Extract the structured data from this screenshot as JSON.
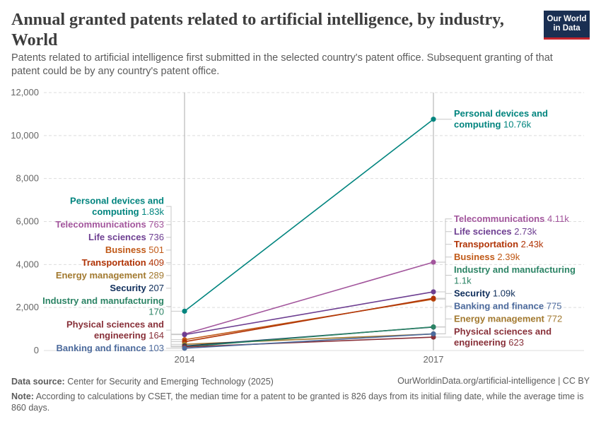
{
  "header": {
    "title": "Annual granted patents related to artificial intelligence, by industry, World",
    "subtitle": "Patents related to artificial intelligence first submitted in the selected country's patent office. Subsequent granting of that patent could be by any country's patent office.",
    "logo_line1": "Our World",
    "logo_line2": "in Data"
  },
  "footer": {
    "source_label": "Data source:",
    "source_text": "Center for Security and Emerging Technology (2025)",
    "url": "OurWorldinData.org/artificial-intelligence | CC BY",
    "note_label": "Note:",
    "note_text": "According to calculations by CSET, the median time for a patent to be granted is 826 days from its initial filing date, while the average time is 860 days."
  },
  "chart_data": {
    "type": "line",
    "subtype": "slope",
    "x": [
      2014,
      2017
    ],
    "x_tick_labels": [
      "2014",
      "2017"
    ],
    "ylim": [
      0,
      12000
    ],
    "y_ticks": [
      0,
      2000,
      4000,
      6000,
      8000,
      10000,
      12000
    ],
    "y_tick_labels": [
      "0",
      "2,000",
      "4,000",
      "6,000",
      "8,000",
      "10,000",
      "12,000"
    ],
    "grid": true,
    "series": [
      {
        "name": "Personal devices and computing",
        "color": "#00847e",
        "values": [
          1830,
          10760
        ],
        "start_label": "1.83k",
        "end_label": "10.76k"
      },
      {
        "name": "Telecommunications",
        "color": "#a2559c",
        "values": [
          763,
          4110
        ],
        "start_label": "763",
        "end_label": "4.11k"
      },
      {
        "name": "Life sciences",
        "color": "#6d3e91",
        "values": [
          736,
          2730
        ],
        "start_label": "736",
        "end_label": "2.73k"
      },
      {
        "name": "Business",
        "color": "#c05917",
        "values": [
          501,
          2390
        ],
        "start_label": "501",
        "end_label": "2.39k"
      },
      {
        "name": "Transportation",
        "color": "#b13507",
        "values": [
          409,
          2430
        ],
        "start_label": "409",
        "end_label": "2.43k"
      },
      {
        "name": "Energy management",
        "color": "#a2792f",
        "values": [
          289,
          772
        ],
        "start_label": "289",
        "end_label": "772"
      },
      {
        "name": "Security",
        "color": "#0f2e5b",
        "values": [
          207,
          1090
        ],
        "start_label": "207",
        "end_label": "1.09k"
      },
      {
        "name": "Industry and manufacturing",
        "color": "#2c8465",
        "values": [
          170,
          1100
        ],
        "start_label": "170",
        "end_label": "1.1k"
      },
      {
        "name": "Physical sciences and engineering",
        "color": "#883039",
        "values": [
          164,
          623
        ],
        "start_label": "164",
        "end_label": "623"
      },
      {
        "name": "Banking and finance",
        "color": "#4c6a9c",
        "values": [
          103,
          775
        ],
        "start_label": "103",
        "end_label": "775"
      }
    ],
    "left_labels": [
      {
        "series": 0,
        "lines": [
          "Personal devices and",
          "computing"
        ],
        "value": "1.83k"
      },
      {
        "series": 1,
        "lines": [
          "Telecommunications"
        ],
        "value": "763"
      },
      {
        "series": 2,
        "lines": [
          "Life sciences"
        ],
        "value": "736"
      },
      {
        "series": 3,
        "lines": [
          "Business"
        ],
        "value": "501"
      },
      {
        "series": 4,
        "lines": [
          "Transportation"
        ],
        "value": "409"
      },
      {
        "series": 5,
        "lines": [
          "Energy management"
        ],
        "value": "289"
      },
      {
        "series": 6,
        "lines": [
          "Security"
        ],
        "value": "207"
      },
      {
        "series": 7,
        "lines": [
          "Industry and manufacturing",
          ""
        ],
        "value": "170"
      },
      {
        "series": 8,
        "lines": [
          "Physical sciences and",
          "engineering"
        ],
        "value": "164"
      },
      {
        "series": 9,
        "lines": [
          "Banking and finance"
        ],
        "value": "103"
      }
    ],
    "right_labels": [
      {
        "series": 0,
        "lines": [
          "Personal devices and",
          "computing"
        ],
        "value": "10.76k"
      },
      {
        "series": 1,
        "lines": [
          "Telecommunications"
        ],
        "value": "4.11k"
      },
      {
        "series": 2,
        "lines": [
          "Life sciences"
        ],
        "value": "2.73k"
      },
      {
        "series": 4,
        "lines": [
          "Transportation"
        ],
        "value": "2.43k"
      },
      {
        "series": 3,
        "lines": [
          "Business"
        ],
        "value": "2.39k"
      },
      {
        "series": 7,
        "lines": [
          "Industry and manufacturing",
          ""
        ],
        "value": "1.1k"
      },
      {
        "series": 6,
        "lines": [
          "Security"
        ],
        "value": "1.09k"
      },
      {
        "series": 9,
        "lines": [
          "Banking and finance"
        ],
        "value": "775"
      },
      {
        "series": 5,
        "lines": [
          "Energy management"
        ],
        "value": "772"
      },
      {
        "series": 8,
        "lines": [
          "Physical sciences and",
          "engineering"
        ],
        "value": "623"
      }
    ]
  }
}
